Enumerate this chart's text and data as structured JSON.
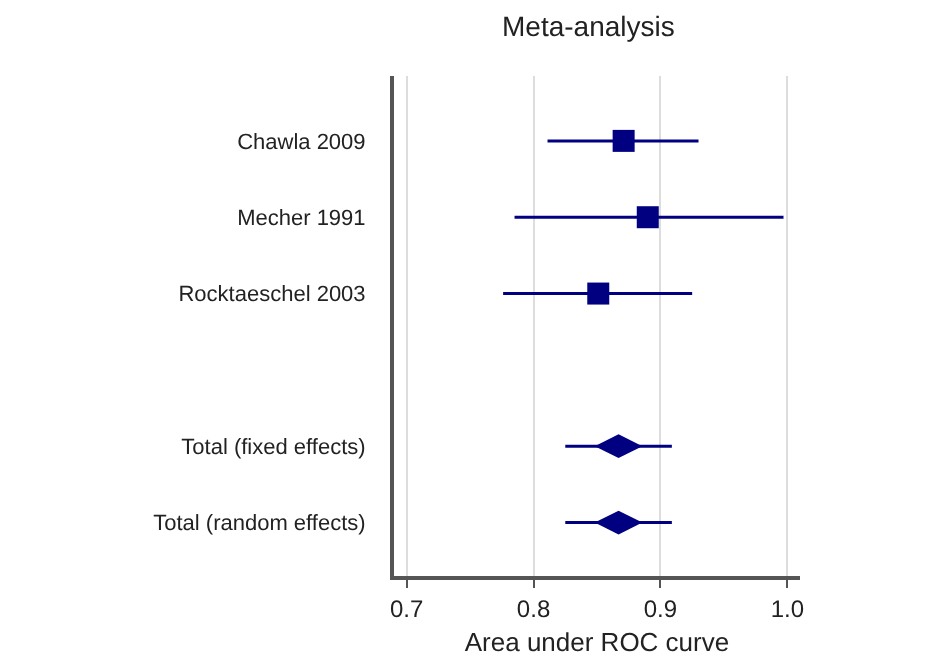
{
  "chart_data": {
    "type": "scatter",
    "orientation": "horizontal",
    "title": "Meta-analysis",
    "xlabel": "Area under ROC curve",
    "categories": [
      "Chawla 2009",
      "Mecher 1991",
      "Rocktaeschel 2003",
      null,
      "Total (fixed effects)",
      "Total (random effects)"
    ],
    "series": [
      {
        "marker": "square",
        "color": "#000080",
        "values": [
          0.871,
          0.89,
          0.851,
          null,
          null,
          null
        ],
        "errors": [
          [
            0.811,
            0.93
          ],
          [
            0.785,
            0.997
          ],
          [
            0.776,
            0.925
          ],
          null,
          null,
          null
        ]
      },
      {
        "marker": "diamond",
        "color": "#000080",
        "values": [
          null,
          null,
          null,
          null,
          0.867,
          0.867
        ],
        "errors": [
          null,
          null,
          null,
          null,
          [
            0.825,
            0.909
          ],
          [
            0.825,
            0.909
          ]
        ]
      }
    ],
    "xlim": [
      0.69,
      1.01
    ],
    "xticks": [
      0.7,
      0.8,
      0.9,
      {
        "value": 1,
        "label": "1.0"
      }
    ],
    "grid": "x"
  }
}
